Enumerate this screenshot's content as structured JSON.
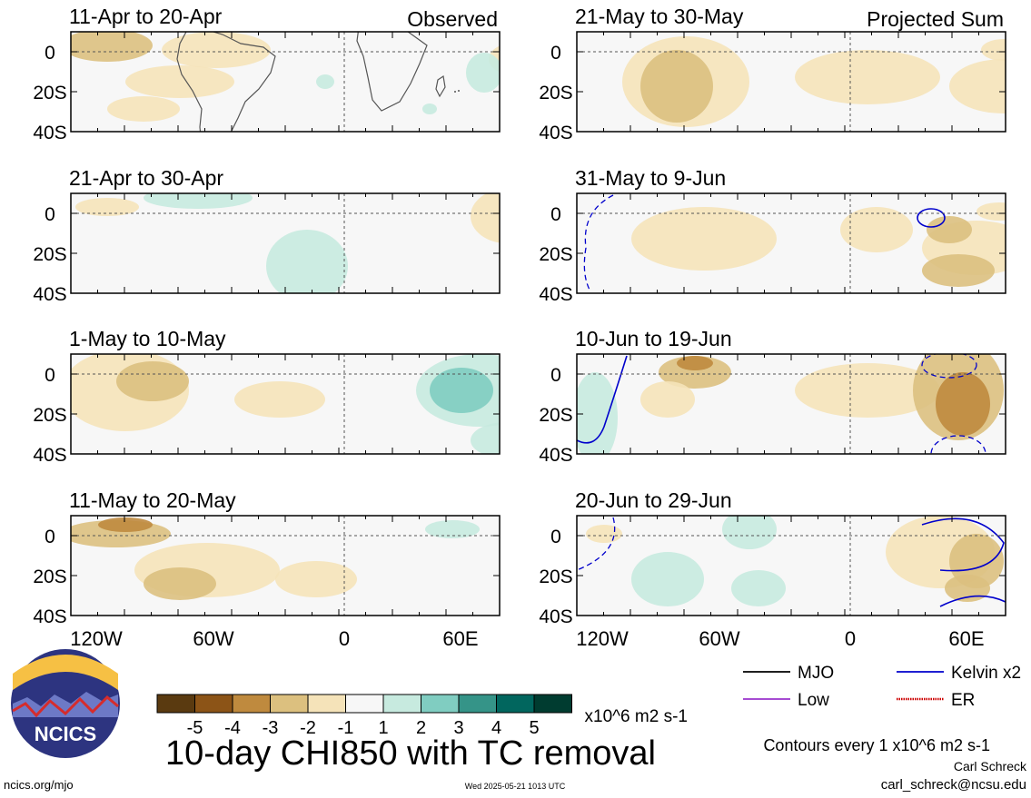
{
  "panels": [
    {
      "title": "11-Apr to 20-Apr",
      "tag": "Observed",
      "side": "left",
      "row": 0
    },
    {
      "title": "21-Apr to 30-Apr",
      "tag": "",
      "side": "left",
      "row": 1
    },
    {
      "title": "1-May to 10-May",
      "tag": "",
      "side": "left",
      "row": 2
    },
    {
      "title": "11-May to 20-May",
      "tag": "",
      "side": "left",
      "row": 3
    },
    {
      "title": "21-May to 30-May",
      "tag": "Projected Sum",
      "side": "right",
      "row": 0
    },
    {
      "title": "31-May to 9-Jun",
      "tag": "",
      "side": "right",
      "row": 1
    },
    {
      "title": "10-Jun to 19-Jun",
      "tag": "",
      "side": "right",
      "row": 2
    },
    {
      "title": "20-Jun to 29-Jun",
      "tag": "",
      "side": "right",
      "row": 3
    }
  ],
  "lat_labels": [
    "0",
    "20S",
    "40S"
  ],
  "lon_labels": [
    "120W",
    "60W",
    "0",
    "60E"
  ],
  "colorbar": {
    "tick_labels": [
      "-5",
      "-4",
      "-3",
      "-2",
      "-1",
      "1",
      "2",
      "3",
      "4",
      "5"
    ],
    "colors": [
      "#5a3a10",
      "#8c5417",
      "#bf8a3e",
      "#dcc07f",
      "#f5e3b9",
      "#f7f7f7",
      "#c7eadf",
      "#80cdc1",
      "#359488",
      "#01665e",
      "#003c30"
    ],
    "units": "x10^6 m2 s-1"
  },
  "title": "10-day CHI850 with TC removal",
  "legend": [
    {
      "label": "MJO",
      "color": "#000000",
      "style": "solid"
    },
    {
      "label": "Kelvin x2",
      "color": "#0000cc",
      "style": "solid"
    },
    {
      "label": "Low",
      "color": "#9933cc",
      "style": "solid"
    },
    {
      "label": "ER",
      "color": "#cc0000",
      "style": "dotted"
    }
  ],
  "contour_note": "Contours every 1 x10^6 m2 s-1",
  "author": "Carl Schreck",
  "email": "carl_schreck@ncsu.edu",
  "site": "ncics.org/mjo",
  "timestamp": "Wed 2025-05-21 1013 UTC",
  "logo_text": "NCICS"
}
